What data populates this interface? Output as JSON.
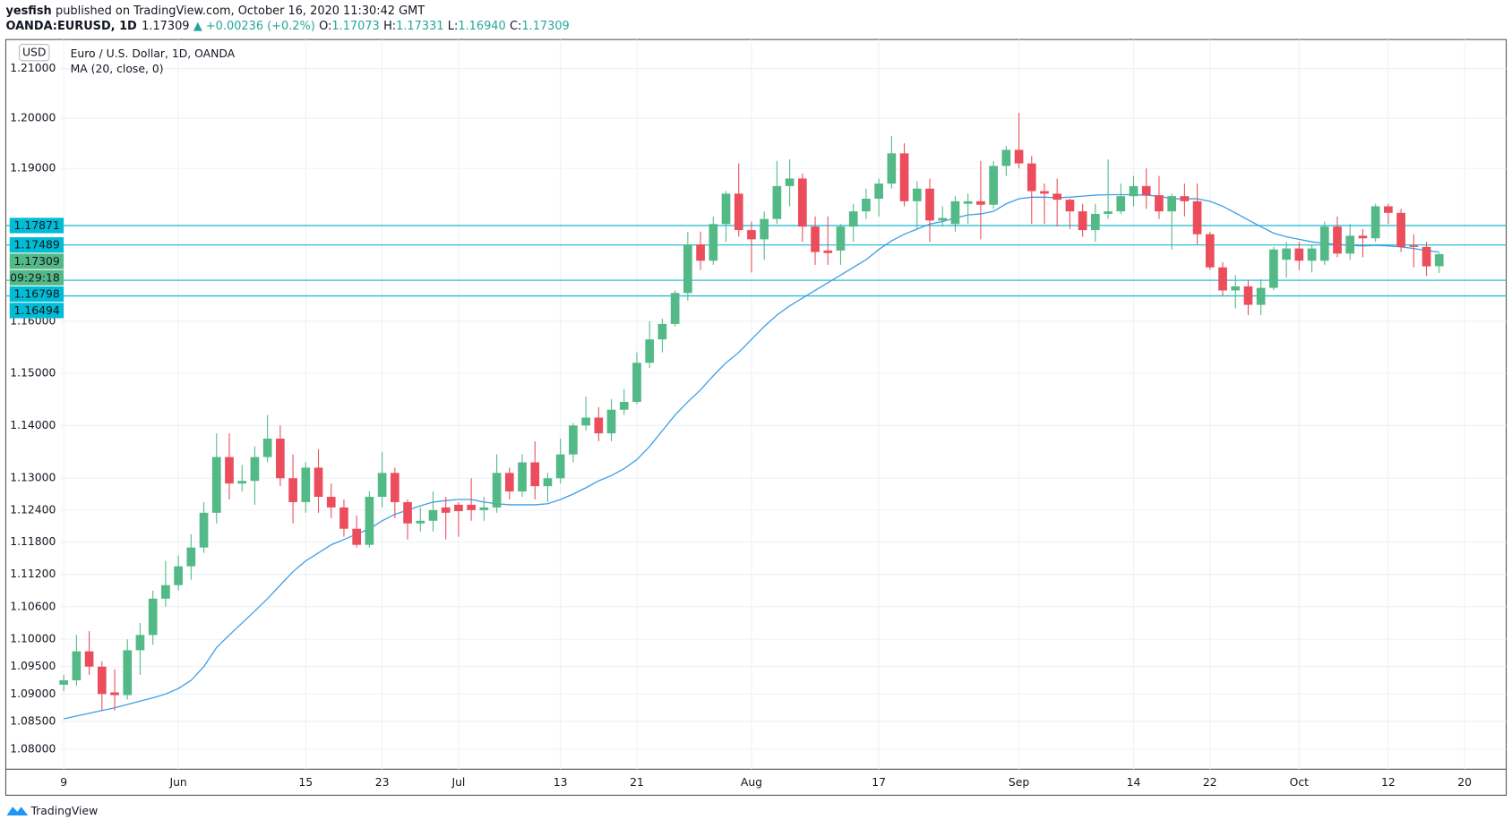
{
  "header": {
    "author": "yesfish",
    "published": "published on TradingView.com, October 16, 2020 11:30:42 GMT",
    "symbol": "OANDA:EURUSD, 1D",
    "price": "1.17309",
    "change": "▲ +0.00236 (+0.2%)",
    "o_label": "O:",
    "o": "1.17073",
    "h_label": "H:",
    "h": "1.17331",
    "l_label": "L:",
    "l": "1.16940",
    "c_label": "C:",
    "c": "1.17309"
  },
  "footer": {
    "brand": "TradingView"
  },
  "chart_data": {
    "type": "candlestick",
    "title": "Euro / U.S. Dollar, 1D, OANDA",
    "indicator": "MA (20, close, 0)",
    "currency": "USD",
    "up_color": "#53b987",
    "down_color": "#eb4d5c",
    "ma_color": "#3d9ee6",
    "line_color": "#2bbfd4",
    "log": true,
    "grid": true,
    "ylim": [
      1.0764,
      1.2159
    ],
    "yticks": [
      {
        "value": 1.21,
        "label": "1.21000"
      },
      {
        "value": 1.2,
        "label": "1.20000"
      },
      {
        "value": 1.19,
        "label": "1.19000"
      },
      {
        "value": 1.16,
        "label": "1.16000"
      },
      {
        "value": 1.15,
        "label": "1.15000"
      },
      {
        "value": 1.14,
        "label": "1.14000"
      },
      {
        "value": 1.13,
        "label": "1.13000"
      },
      {
        "value": 1.124,
        "label": "1.12400"
      },
      {
        "value": 1.118,
        "label": "1.11800"
      },
      {
        "value": 1.112,
        "label": "1.11200"
      },
      {
        "value": 1.106,
        "label": "1.10600"
      },
      {
        "value": 1.1,
        "label": "1.10000"
      },
      {
        "value": 1.095,
        "label": "1.09500"
      },
      {
        "value": 1.09,
        "label": "1.09000"
      },
      {
        "value": 1.085,
        "label": "1.08500"
      },
      {
        "value": 1.08,
        "label": "1.08000"
      }
    ],
    "xlim": [
      -4.55,
      113.26
    ],
    "xticks": [
      {
        "value": 0,
        "label": "9"
      },
      {
        "value": 9,
        "label": "Jun"
      },
      {
        "value": 19,
        "label": "15"
      },
      {
        "value": 25,
        "label": "23"
      },
      {
        "value": 31,
        "label": "Jul"
      },
      {
        "value": 39,
        "label": "13"
      },
      {
        "value": 45,
        "label": "21"
      },
      {
        "value": 54,
        "label": "Aug"
      },
      {
        "value": 64,
        "label": "17"
      },
      {
        "value": 75,
        "label": "Sep"
      },
      {
        "value": 84,
        "label": "14"
      },
      {
        "value": 90,
        "label": "22"
      },
      {
        "value": 97,
        "label": "Oct"
      },
      {
        "value": 104,
        "label": "12"
      },
      {
        "value": 110,
        "label": "20"
      }
    ],
    "price_lines": [
      1.17871,
      1.17489,
      1.16798,
      1.16494
    ],
    "last_price": 1.17309,
    "countdown": "09:29:18",
    "open": [
      1.0917,
      1.0925,
      1.0978,
      1.095,
      1.0903,
      1.0898,
      1.098,
      1.1008,
      1.1075,
      1.11,
      1.1135,
      1.117,
      1.1235,
      1.134,
      1.129,
      1.1295,
      1.134,
      1.1375,
      1.13,
      1.1255,
      1.132,
      1.1265,
      1.1245,
      1.1205,
      1.1175,
      1.1265,
      1.131,
      1.1255,
      1.1215,
      1.122,
      1.1245,
      1.125,
      1.125,
      1.124,
      1.1245,
      1.131,
      1.1275,
      1.133,
      1.1285,
      1.13,
      1.1345,
      1.14,
      1.1415,
      1.1385,
      1.143,
      1.1445,
      1.152,
      1.1565,
      1.1595,
      1.1655,
      1.175,
      1.1718,
      1.179,
      1.185,
      1.1778,
      1.176,
      1.18,
      1.1865,
      1.188,
      1.1785,
      1.1738,
      1.1738,
      1.1785,
      1.1815,
      1.184,
      1.187,
      1.193,
      1.1835,
      1.186,
      1.1797,
      1.179,
      1.183,
      1.1835,
      1.1828,
      1.1905,
      1.1937,
      1.191,
      1.1855,
      1.185,
      1.1838,
      1.1815,
      1.1778,
      1.181,
      1.1815,
      1.1845,
      1.1865,
      1.1847,
      1.1815,
      1.1845,
      1.1835,
      1.177,
      1.1705,
      1.166,
      1.1668,
      1.1632,
      1.1665,
      1.172,
      1.1742,
      1.1718,
      1.1718,
      1.1785,
      1.1732,
      1.1767,
      1.1762,
      1.1825,
      1.1812,
      1.1748,
      1.1745,
      1.17073
    ],
    "high": [
      1.0935,
      1.1008,
      1.1015,
      1.096,
      1.0945,
      1.1,
      1.103,
      1.109,
      1.1145,
      1.1155,
      1.1195,
      1.1255,
      1.1385,
      1.1385,
      1.1325,
      1.136,
      1.142,
      1.14,
      1.1345,
      1.133,
      1.1355,
      1.129,
      1.126,
      1.123,
      1.1275,
      1.135,
      1.132,
      1.126,
      1.1245,
      1.1275,
      1.1265,
      1.1255,
      1.13,
      1.1265,
      1.1345,
      1.132,
      1.1345,
      1.137,
      1.131,
      1.1375,
      1.1405,
      1.1455,
      1.1435,
      1.145,
      1.147,
      1.154,
      1.16,
      1.1605,
      1.166,
      1.1775,
      1.1775,
      1.1805,
      1.1855,
      1.191,
      1.1795,
      1.1815,
      1.1915,
      1.1918,
      1.189,
      1.1805,
      1.1805,
      1.179,
      1.183,
      1.186,
      1.188,
      1.1965,
      1.195,
      1.1875,
      1.188,
      1.1825,
      1.1845,
      1.185,
      1.1915,
      1.1915,
      1.1945,
      1.2011,
      1.1925,
      1.187,
      1.188,
      1.184,
      1.183,
      1.183,
      1.1918,
      1.187,
      1.1885,
      1.19,
      1.1885,
      1.185,
      1.187,
      1.187,
      1.1775,
      1.1715,
      1.169,
      1.168,
      1.1682,
      1.1745,
      1.1755,
      1.1755,
      1.175,
      1.1795,
      1.1805,
      1.179,
      1.178,
      1.183,
      1.183,
      1.182,
      1.177,
      1.1755,
      1.17331
    ],
    "low": [
      1.0905,
      1.0915,
      1.0935,
      1.087,
      1.087,
      1.089,
      1.0935,
      1.099,
      1.106,
      1.109,
      1.111,
      1.116,
      1.1215,
      1.126,
      1.1275,
      1.125,
      1.133,
      1.1285,
      1.1215,
      1.1235,
      1.1235,
      1.1225,
      1.119,
      1.117,
      1.117,
      1.1245,
      1.1225,
      1.1185,
      1.12,
      1.12,
      1.1185,
      1.119,
      1.122,
      1.122,
      1.1235,
      1.126,
      1.1265,
      1.126,
      1.1255,
      1.129,
      1.133,
      1.139,
      1.137,
      1.137,
      1.142,
      1.144,
      1.151,
      1.154,
      1.159,
      1.164,
      1.17,
      1.171,
      1.1755,
      1.1765,
      1.1695,
      1.172,
      1.179,
      1.1825,
      1.1755,
      1.171,
      1.171,
      1.171,
      1.1755,
      1.18,
      1.1805,
      1.186,
      1.1825,
      1.178,
      1.1755,
      1.1785,
      1.1775,
      1.179,
      1.176,
      1.182,
      1.1885,
      1.19,
      1.179,
      1.179,
      1.1785,
      1.178,
      1.1765,
      1.1755,
      1.18,
      1.181,
      1.1825,
      1.182,
      1.18,
      1.174,
      1.1805,
      1.175,
      1.17,
      1.165,
      1.1625,
      1.1612,
      1.1612,
      1.166,
      1.1685,
      1.17,
      1.1695,
      1.171,
      1.1725,
      1.172,
      1.1725,
      1.1755,
      1.179,
      1.1735,
      1.1705,
      1.1688,
      1.1694
    ],
    "close": [
      1.0925,
      1.0978,
      1.095,
      1.09,
      1.0898,
      1.098,
      1.1008,
      1.1075,
      1.11,
      1.1135,
      1.117,
      1.1235,
      1.134,
      1.129,
      1.1295,
      1.134,
      1.1375,
      1.13,
      1.1255,
      1.132,
      1.1265,
      1.1245,
      1.1205,
      1.1175,
      1.1265,
      1.131,
      1.1255,
      1.1215,
      1.122,
      1.124,
      1.1235,
      1.1238,
      1.124,
      1.1245,
      1.131,
      1.1275,
      1.133,
      1.1285,
      1.13,
      1.1345,
      1.14,
      1.1415,
      1.1385,
      1.143,
      1.1445,
      1.152,
      1.1565,
      1.1595,
      1.1655,
      1.175,
      1.1718,
      1.179,
      1.185,
      1.1778,
      1.176,
      1.18,
      1.1865,
      1.188,
      1.1785,
      1.1735,
      1.1733,
      1.1785,
      1.1815,
      1.184,
      1.187,
      1.193,
      1.1835,
      1.186,
      1.1797,
      1.1802,
      1.1835,
      1.1835,
      1.1828,
      1.1905,
      1.1937,
      1.191,
      1.1855,
      1.185,
      1.1838,
      1.1815,
      1.1778,
      1.181,
      1.1815,
      1.1845,
      1.1865,
      1.1847,
      1.1815,
      1.1845,
      1.1835,
      1.177,
      1.1705,
      1.166,
      1.1668,
      1.1632,
      1.1665,
      1.174,
      1.1742,
      1.1718,
      1.1742,
      1.1785,
      1.1732,
      1.1767,
      1.1762,
      1.1825,
      1.1812,
      1.1745,
      1.1745,
      1.1707,
      1.17309
    ],
    "ma": [
      1.0855,
      1.086,
      1.0865,
      1.087,
      1.0875,
      1.0881,
      1.0887,
      1.0893,
      1.09,
      1.091,
      1.0925,
      1.095,
      1.0985,
      1.1008,
      1.103,
      1.1052,
      1.1075,
      1.11,
      1.1125,
      1.1145,
      1.116,
      1.1175,
      1.1185,
      1.1195,
      1.1205,
      1.122,
      1.1232,
      1.124,
      1.1248,
      1.1255,
      1.1258,
      1.126,
      1.126,
      1.1255,
      1.1252,
      1.125,
      1.125,
      1.125,
      1.1252,
      1.126,
      1.127,
      1.1282,
      1.1295,
      1.1305,
      1.1318,
      1.1335,
      1.136,
      1.139,
      1.142,
      1.1445,
      1.1468,
      1.1495,
      1.152,
      1.154,
      1.1565,
      1.159,
      1.1612,
      1.163,
      1.1645,
      1.166,
      1.1675,
      1.169,
      1.1705,
      1.172,
      1.174,
      1.1757,
      1.177,
      1.178,
      1.179,
      1.1795,
      1.1802,
      1.1808,
      1.181,
      1.1815,
      1.183,
      1.184,
      1.1843,
      1.1843,
      1.1842,
      1.1843,
      1.1845,
      1.1847,
      1.1848,
      1.1848,
      1.1848,
      1.1847,
      1.1845,
      1.184,
      1.184,
      1.184,
      1.1835,
      1.1825,
      1.1812,
      1.1798,
      1.1785,
      1.1772,
      1.1765,
      1.176,
      1.1755,
      1.1752,
      1.175,
      1.1748,
      1.1747,
      1.1748,
      1.1747,
      1.1745,
      1.1742,
      1.1738,
      1.1735
    ]
  }
}
